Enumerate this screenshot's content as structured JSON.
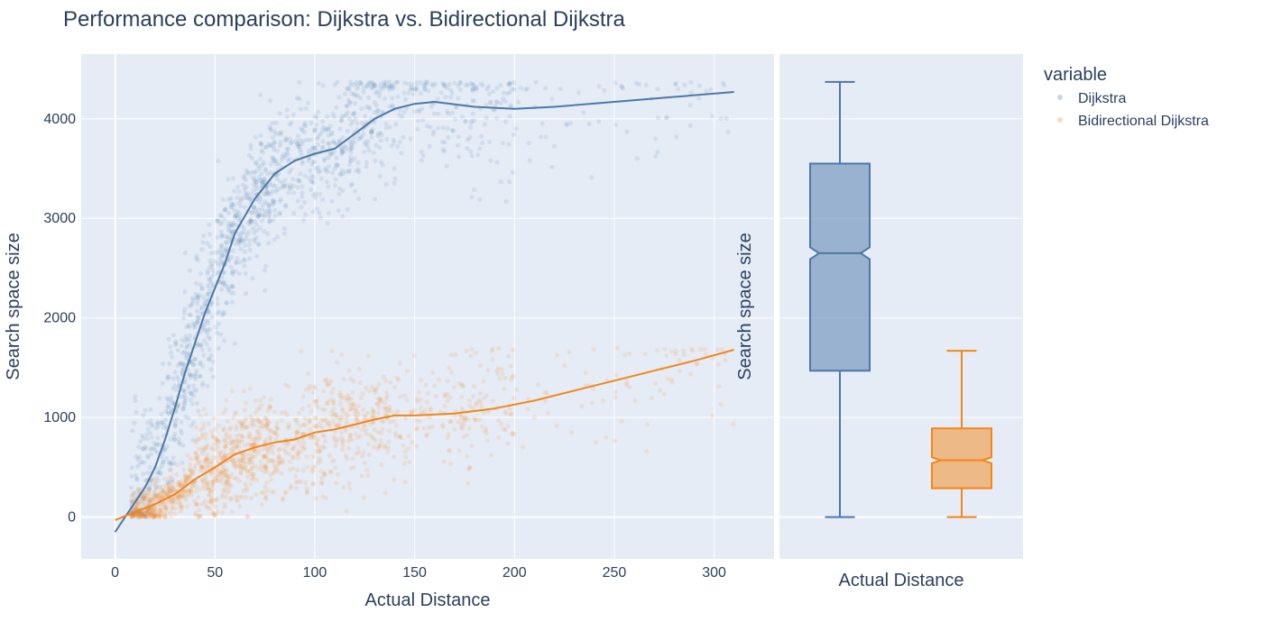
{
  "chart_data": {
    "title": "Performance comparison: Dijkstra vs. Bidirectional Dijkstra",
    "legend": {
      "title": "variable",
      "position": "top-right",
      "entries": [
        {
          "name": "Dijkstra",
          "color": "#4c78a8"
        },
        {
          "name": "Bidirectional Dijkstra",
          "color": "#f58518"
        }
      ]
    },
    "scatter": {
      "type": "scatter",
      "xlabel": "Actual Distance",
      "ylabel": "Search space size",
      "xlim": [
        -17,
        330
      ],
      "ylim": [
        -420,
        4650
      ],
      "x_ticks": [
        0,
        50,
        100,
        150,
        200,
        250,
        300
      ],
      "y_ticks": [
        0,
        1000,
        2000,
        3000,
        4000
      ],
      "grid": true,
      "series": [
        {
          "name": "Dijkstra",
          "color": "#4c78a8",
          "trend_x": [
            0,
            5,
            10,
            15,
            20,
            25,
            30,
            35,
            40,
            45,
            50,
            55,
            60,
            70,
            80,
            90,
            100,
            110,
            120,
            130,
            140,
            150,
            160,
            180,
            200,
            220,
            250,
            280,
            310
          ],
          "trend_y": [
            -150,
            0,
            150,
            300,
            500,
            780,
            1100,
            1450,
            1750,
            2050,
            2300,
            2550,
            2850,
            3200,
            3450,
            3580,
            3650,
            3700,
            3850,
            4000,
            4100,
            4150,
            4170,
            4120,
            4100,
            4120,
            4170,
            4220,
            4270
          ]
        },
        {
          "name": "Bidirectional Dijkstra",
          "color": "#f58518",
          "trend_x": [
            0,
            10,
            20,
            30,
            40,
            50,
            60,
            70,
            80,
            90,
            100,
            110,
            120,
            130,
            140,
            150,
            170,
            190,
            210,
            230,
            250,
            270,
            290,
            310
          ],
          "trend_y": [
            -30,
            50,
            130,
            230,
            380,
            500,
            630,
            700,
            750,
            780,
            850,
            880,
            930,
            980,
            1020,
            1020,
            1040,
            1090,
            1170,
            1270,
            1370,
            1470,
            1570,
            1680
          ]
        }
      ]
    },
    "box": {
      "type": "box",
      "xlabel": "Actual Distance",
      "ylabel": "Search space size",
      "notched": true,
      "series": [
        {
          "name": "Dijkstra",
          "color": "#4c78a8",
          "min": 0,
          "q1": 1470,
          "median": 2650,
          "q3": 3550,
          "max": 4370,
          "notch_low": 2590,
          "notch_high": 2710
        },
        {
          "name": "Bidirectional Dijkstra",
          "color": "#f58518",
          "min": 0,
          "q1": 290,
          "median": 570,
          "q3": 890,
          "max": 1670,
          "notch_low": 540,
          "notch_high": 600
        }
      ]
    }
  }
}
